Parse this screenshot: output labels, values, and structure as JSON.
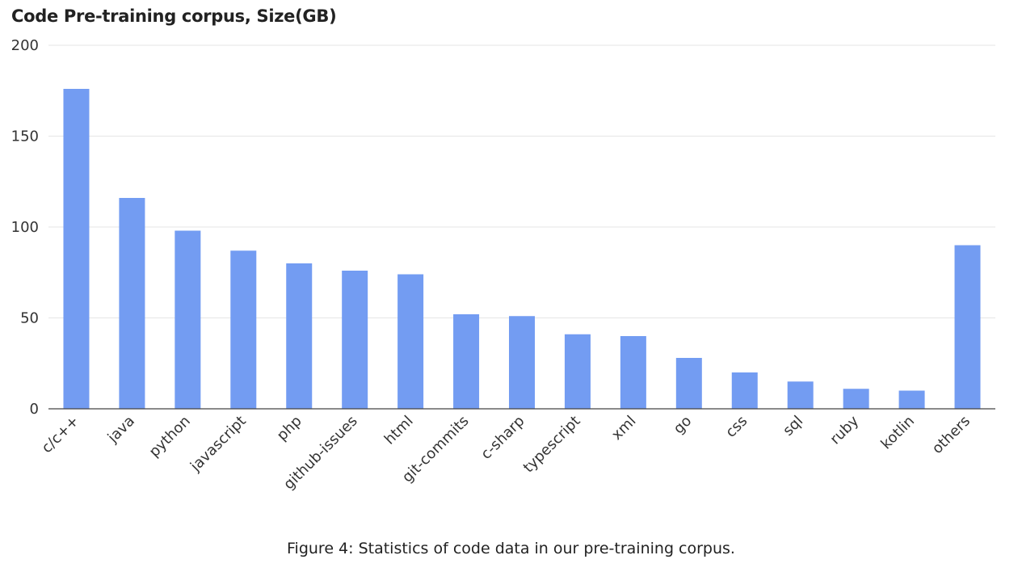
{
  "chart_data": {
    "type": "bar",
    "title": "Code Pre-training corpus, Size(GB)",
    "categories": [
      "c/c++",
      "java",
      "python",
      "javascript",
      "php",
      "github-issues",
      "html",
      "git-commits",
      "c-sharp",
      "typescript",
      "xml",
      "go",
      "css",
      "sql",
      "ruby",
      "kotlin",
      "others"
    ],
    "values": [
      176,
      116,
      98,
      87,
      80,
      76,
      74,
      52,
      51,
      41,
      40,
      28,
      20,
      15,
      11,
      10,
      90
    ],
    "ylim": [
      0,
      200
    ],
    "yticks": [
      0,
      50,
      100,
      150,
      200
    ],
    "xlabel": "",
    "ylabel": "",
    "grid": true,
    "bar_color": "#739cf2",
    "grid_color": "#e6e6e6",
    "axis_color": "#444444"
  },
  "caption": "Figure 4: Statistics of code data in our pre-training corpus."
}
